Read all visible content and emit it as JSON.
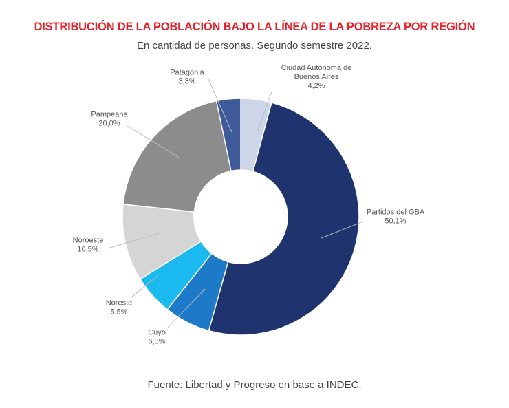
{
  "header": {
    "title": "DISTRIBUCIÓN DE LA POBLACIÓN BAJO LA LÍNEA DE LA POBREZA POR REGIÓN",
    "subtitle": "En cantidad de personas. Segundo semestre 2022."
  },
  "footer": {
    "source": "Fuente: Libertad y Progreso en base a INDEC."
  },
  "colors": {
    "title": "#e8202a"
  },
  "chart_data": {
    "type": "pie",
    "donut": true,
    "title": "DISTRIBUCIÓN DE LA POBLACIÓN BAJO LA LÍNEA DE LA POBREZA POR REGIÓN",
    "subtitle": "En cantidad de personas. Segundo semestre 2022.",
    "unit": "%",
    "slices": [
      {
        "label": "Ciudad Autónoma de Buenos Aires",
        "value": 4.2,
        "value_label": "4,2%",
        "label_lines": [
          "Ciudad Autónoma de",
          "Buenos Aires"
        ],
        "color": "#cdd5e8"
      },
      {
        "label": "Partidos del GBA",
        "value": 50.1,
        "value_label": "50,1%",
        "label_lines": [
          "Partidos del GBA"
        ],
        "color": "#1f346f"
      },
      {
        "label": "Cuyo",
        "value": 6.3,
        "value_label": "6,3%",
        "label_lines": [
          "Cuyo"
        ],
        "color": "#1d7ac8"
      },
      {
        "label": "Noreste",
        "value": 5.5,
        "value_label": "5,5%",
        "label_lines": [
          "Noreste"
        ],
        "color": "#1ab9ef"
      },
      {
        "label": "Noroeste",
        "value": 10.5,
        "value_label": "10,5%",
        "label_lines": [
          "Noroeste"
        ],
        "color": "#d5d5d5"
      },
      {
        "label": "Pampeana",
        "value": 20.0,
        "value_label": "20,0%",
        "label_lines": [
          "Pampeana"
        ],
        "color": "#8c8c8c"
      },
      {
        "label": "Patagonia",
        "value": 3.3,
        "value_label": "3,3%",
        "label_lines": [
          "Patagonia"
        ],
        "color": "#3f5a9a"
      }
    ]
  }
}
